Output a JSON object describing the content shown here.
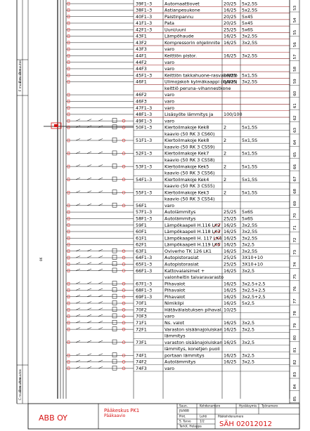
{
  "colors": {
    "red": "#d61414",
    "line": "#000000"
  },
  "side_labels_top": [
    "D muutos",
    "E muutos",
    "F muutos"
  ],
  "side_labels_bottom": [
    "A muutos",
    "B muutos",
    "C muutos"
  ],
  "side_mid_label": "06",
  "rows": [
    {
      "id": "39F1–3",
      "desc": "Automaattiovet",
      "rating": "20/25",
      "cable": "5x2,5S"
    },
    {
      "id": "38F1–3",
      "desc": "Astianpesukone",
      "rating": "16/25",
      "cable": "5x2,5S"
    },
    {
      "id": "40F1–3",
      "desc": "Paistinpannu",
      "rating": "20/25",
      "cable": "5x45"
    },
    {
      "id": "41F1–3",
      "desc": "Pata",
      "rating": "20/25",
      "cable": "5x45"
    },
    {
      "id": "42F1–3",
      "desc": "Uuni/uuni",
      "rating": "25/25",
      "cable": "5x6S"
    },
    {
      "id": "43F1",
      "desc": "Lämpöhaude",
      "rating": "16/25",
      "cable": "3x2,5S"
    },
    {
      "id": "43F2",
      "desc": "Kompressorin ohjelinnite",
      "rating": "16/25",
      "cable": "3x2,5S"
    },
    {
      "id": "43F3",
      "desc": "varo",
      "rating": "",
      "cable": ""
    },
    {
      "id": "44F1",
      "desc": "Keittiön pistor.",
      "rating": "16/25",
      "cable": "3x2,5S"
    },
    {
      "id": "44F2",
      "desc": "varo",
      "rating": "",
      "cable": ""
    },
    {
      "id": "44F3",
      "desc": "varo",
      "rating": "",
      "cable": ""
    },
    {
      "id": "45F1–3",
      "desc": "Keittiön takkahuone-rasvakeittiö",
      "rating": "10/25",
      "cable": "5x1,5S"
    },
    {
      "id": "46F1",
      "desc": "Ulimojakoh kylmäkaappi (kylkin)",
      "rating": "16/25",
      "cable": "3x2,5S"
    },
    {
      "id": "",
      "desc": "keittiö peruna–vihannestkone",
      "rating": "",
      "cable": ""
    },
    {
      "id": "46F2",
      "desc": "varo",
      "rating": "",
      "cable": ""
    },
    {
      "id": "46F3",
      "desc": "varo",
      "rating": "",
      "cable": ""
    },
    {
      "id": "47F1–3",
      "desc": "varo",
      "rating": "",
      "cable": ""
    },
    {
      "id": "48F1–3",
      "desc": "Lisäsyöte lämmitys ja",
      "rating": "100/100",
      "cable": ""
    },
    {
      "id": "49F1–3",
      "desc": "varo",
      "rating": "",
      "cable": ""
    },
    {
      "id": "50F1–3",
      "desc": "Kiertoilmakoje Kek8",
      "rating": "2",
      "cable": "5x1,5S"
    },
    {
      "id": "",
      "desc": "kaavio (50 RK 3 CS60)",
      "rating": "",
      "cable": ""
    },
    {
      "id": "51F1–3",
      "desc": "Kiertoilmakoje Kek8",
      "rating": "2",
      "cable": "5x1,5S"
    },
    {
      "id": "",
      "desc": "kaavio (50 RK 3 CS59)",
      "rating": "",
      "cable": ""
    },
    {
      "id": "52F1–3",
      "desc": "Kiertoilmakoje Kek7",
      "rating": "2",
      "cable": "5x1,5S"
    },
    {
      "id": "",
      "desc": "kaavio (50 RK 3 CS58)",
      "rating": "",
      "cable": ""
    },
    {
      "id": "53F1–3",
      "desc": "Kiertoilmakoje Kek5",
      "rating": "2",
      "cable": "5x1,5S"
    },
    {
      "id": "",
      "desc": "kaavio (50 RK 3 CS56)",
      "rating": "",
      "cable": ""
    },
    {
      "id": "54F1–3",
      "desc": "Kiertoilmakoje Kek4",
      "rating": "2",
      "cable": "5x1,5S"
    },
    {
      "id": "",
      "desc": "kaavio (50 RK 3 CS55)",
      "rating": "",
      "cable": ""
    },
    {
      "id": "55F1–3",
      "desc": "Kiertoilmakoje Kek3",
      "rating": "2",
      "cable": "5x1,5S"
    },
    {
      "id": "",
      "desc": "kaavio (50 RK 3 CS54)",
      "rating": "",
      "cable": ""
    },
    {
      "id": "56F1",
      "desc": "varo",
      "rating": "",
      "cable": ""
    },
    {
      "id": "57F1–3",
      "desc": "Autolämmitys",
      "rating": "25/25",
      "cable": "5x6S"
    },
    {
      "id": "58F1–3",
      "desc": "Autolämmitys",
      "rating": "25/25",
      "cable": "5x6S"
    },
    {
      "id": "59F1",
      "desc": "Lämpökaapeli H.116 LK2",
      "rating": "16/25",
      "cable": "3x2,5S"
    },
    {
      "id": "60F1",
      "desc": "Lämpökaapeli H.118 LK3",
      "rating": "16/25",
      "cable": "3x2,5S"
    },
    {
      "id": "61F1",
      "desc": "Lämpökaapeli H. 117 LK4",
      "rating": "16/25",
      "cable": "3x2,5S"
    },
    {
      "id": "62F1",
      "desc": "Lämpökaapeli H.119 LK5",
      "rating": "16/25",
      "cable": "3x2,5"
    },
    {
      "id": "63F1",
      "desc": "Oviverho TK 126 LK1",
      "rating": "16/25",
      "cable": "3x2,5S"
    },
    {
      "id": "64F1–3",
      "desc": "Autopistorasiat",
      "rating": "25/25",
      "cable": "3X10+10"
    },
    {
      "id": "65F1–3",
      "desc": "Autopistorasiat",
      "rating": "25/25",
      "cable": "3X10+10"
    },
    {
      "id": "66F1–3",
      "desc": "Kattovalaisimet +",
      "rating": "16/25",
      "cable": "3x2,5"
    },
    {
      "id": "",
      "desc": "valonheitin taivaravarasto",
      "rating": "",
      "cable": ""
    },
    {
      "id": "67F1–3",
      "desc": "Pihavalot",
      "rating": "16/25",
      "cable": "3x2,5+2,5"
    },
    {
      "id": "68F1–3",
      "desc": "Pihavalot",
      "rating": "16/25",
      "cable": "3x2,5+2,5"
    },
    {
      "id": "69F1–3",
      "desc": "Pihavalot",
      "rating": "16/25",
      "cable": "3x2,5+2,5"
    },
    {
      "id": "70F1",
      "desc": "Nimikilpi",
      "rating": "16/25",
      "cable": "5x2,5"
    },
    {
      "id": "70F2",
      "desc": "Hätävälaistuksen pihaval.",
      "rating": "10/25",
      "cable": ""
    },
    {
      "id": "70F3",
      "desc": "varo",
      "rating": "",
      "cable": ""
    },
    {
      "id": "71F1",
      "desc": "Ns. valot",
      "rating": "16/25",
      "cable": "3x2,5"
    },
    {
      "id": "72F1",
      "desc": "Varaston sisäänajoluiskan",
      "rating": "16/25",
      "cable": "3x2,5"
    },
    {
      "id": "",
      "desc": "lämmitys",
      "rating": "",
      "cable": ""
    },
    {
      "id": "73F1",
      "desc": "varaston sisäänajoluiskan",
      "rating": "16/25",
      "cable": "3x2,5"
    },
    {
      "id": "",
      "desc": "lämmitys, konetjen puoli",
      "rating": "",
      "cable": ""
    },
    {
      "id": "74F1",
      "desc": "portaan lämmitys",
      "rating": "16/25",
      "cable": "3x2,5"
    },
    {
      "id": "74F2",
      "desc": "Autolämmitys",
      "rating": "16/25",
      "cable": "3x2,5"
    },
    {
      "id": "74F3",
      "desc": "varo",
      "rating": "",
      "cable": ""
    }
  ],
  "row_numbers": [
    "53",
    "54",
    "55",
    "56",
    "57",
    "58",
    "59",
    "60",
    "61",
    "62",
    "63",
    "64",
    "65",
    "66",
    "67",
    "68",
    "69",
    "70",
    "71",
    "72",
    "73",
    "74",
    "75",
    "76",
    "77",
    "78",
    "79",
    "80",
    "81",
    "82",
    "83",
    "84",
    "85"
  ],
  "title_block": {
    "company": "ABB OY",
    "title_line1": "Pääkeskus PK1",
    "title_line2": "Pääkaavio",
    "doc_id": "SÄH 02012012",
    "col1_head": "Suun.",
    "col2_head": "Kohdenumero",
    "col3_head": "Hyväksymis",
    "col4_head": "Työnumero",
    "r1": "JS/ABB",
    "r2a": "Piirt.",
    "r2b": "Lehti",
    "r2c": "Pääkohdenumero",
    "r3a": "S. Tarvo",
    "r3b": "1/2",
    "r4a": "Tark.",
    "r4b": "K. Helappa"
  }
}
